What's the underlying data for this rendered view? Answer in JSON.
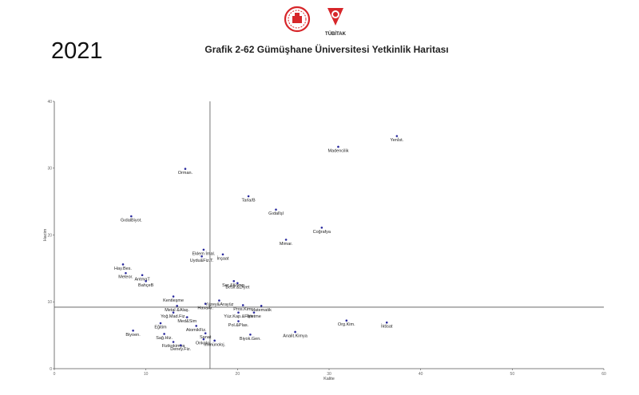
{
  "header": {
    "year": "2021",
    "title": "Grafik 2-62 Gümüşhane Üniversitesi Yetkinlik Haritası",
    "logo_right_text": "TÜBİTAK"
  },
  "colors": {
    "point": "#2a2a9e",
    "axis": "#555555",
    "logo_red": "#d7262a"
  },
  "chart_data": {
    "type": "scatter",
    "title": "Grafik 2-62 Gümüşhane Üniversitesi Yetkinlik Haritası",
    "xlabel": "Kalite",
    "ylabel": "Hacim",
    "xlim": [
      0,
      60
    ],
    "ylim": [
      0,
      40
    ],
    "xticks": [
      0,
      10,
      20,
      30,
      40,
      50,
      60
    ],
    "yticks": [
      0,
      10,
      20,
      30,
      40
    ],
    "reference_lines": {
      "x": 17,
      "y": 9.2
    },
    "grid": false,
    "points": [
      {
        "label": "Yenİst.",
        "x": 37.4,
        "y": 34.8
      },
      {
        "label": "Madencilik",
        "x": 31.0,
        "y": 33.2
      },
      {
        "label": "Orman.",
        "x": 14.3,
        "y": 29.9
      },
      {
        "label": "Tarla/B",
        "x": 21.2,
        "y": 25.8
      },
      {
        "label": "Gıdalîşl",
        "x": 24.2,
        "y": 23.8
      },
      {
        "label": "GıdalBiyot.",
        "x": 8.4,
        "y": 22.8
      },
      {
        "label": "Coğrafya",
        "x": 29.2,
        "y": 21.1
      },
      {
        "label": "Mimar.",
        "x": 25.3,
        "y": 19.3
      },
      {
        "label": "Eklem İmal.",
        "x": 16.3,
        "y": 17.8
      },
      {
        "label": "İnşaat",
        "x": 18.4,
        "y": 17.1
      },
      {
        "label": "Uydu&Fiz.T.",
        "x": 16.1,
        "y": 16.8
      },
      {
        "label": "Hay.Bes.",
        "x": 7.5,
        "y": 15.6
      },
      {
        "label": "Meteor.",
        "x": 7.8,
        "y": 14.3
      },
      {
        "label": "AntmaT",
        "x": 9.6,
        "y": 14.0
      },
      {
        "label": "Ser.&Komp.",
        "x": 19.6,
        "y": 13.1
      },
      {
        "label": "BahçeB",
        "x": 10.0,
        "y": 13.1
      },
      {
        "label": "Beslf.&Diyet",
        "x": 20.0,
        "y": 12.8
      },
      {
        "label": "Kentleşme",
        "x": 13.0,
        "y": 10.8
      },
      {
        "label": "Yüzey&Arayüz",
        "x": 18.0,
        "y": 10.2
      },
      {
        "label": "HavaAr.",
        "x": 16.5,
        "y": 9.7
      },
      {
        "label": "Metal &Alaş.",
        "x": 13.4,
        "y": 9.4
      },
      {
        "label": "Pros.Kim.",
        "x": 20.6,
        "y": 9.5
      },
      {
        "label": "Matematik",
        "x": 22.6,
        "y": 9.4
      },
      {
        "label": "Yüz.Kap.&Film",
        "x": 20.1,
        "y": 8.4
      },
      {
        "label": "İşletme",
        "x": 21.8,
        "y": 8.4
      },
      {
        "label": "Yoğ.Mad.Fiz.",
        "x": 13.0,
        "y": 8.4
      },
      {
        "label": "Med&Sim",
        "x": 14.5,
        "y": 7.7
      },
      {
        "label": "Org.Kim.",
        "x": 31.9,
        "y": 7.2
      },
      {
        "label": "Pol.&Plas.",
        "x": 20.1,
        "y": 7.1
      },
      {
        "label": "İktisat",
        "x": 36.3,
        "y": 6.9
      },
      {
        "label": "Eğitim",
        "x": 11.6,
        "y": 6.8
      },
      {
        "label": "AtomikFiz.",
        "x": 15.5,
        "y": 6.4
      },
      {
        "label": "Biyoen.",
        "x": 8.6,
        "y": 5.7
      },
      {
        "label": "Sağ.Hiz.",
        "x": 12.0,
        "y": 5.2
      },
      {
        "label": "Analit.Kimya",
        "x": 26.3,
        "y": 5.5
      },
      {
        "label": "Sanat",
        "x": 16.5,
        "y": 5.3
      },
      {
        "label": "Biyok.Gen.",
        "x": 21.4,
        "y": 5.1
      },
      {
        "label": "Onkoloj.",
        "x": 16.3,
        "y": 4.4
      },
      {
        "label": "İmmünoloj.",
        "x": 17.5,
        "y": 4.2
      },
      {
        "label": "Fizikokimya",
        "x": 13.0,
        "y": 4.0
      },
      {
        "label": "Deney.Fiz.",
        "x": 13.8,
        "y": 3.5
      }
    ]
  }
}
